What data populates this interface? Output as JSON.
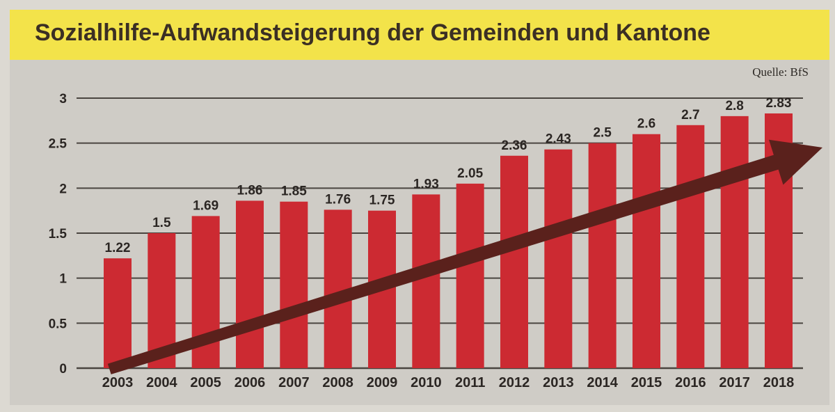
{
  "title": "Sozialhilfe-Aufwandsteigerung der Gemeinden und Kantone",
  "source": "Quelle: BfS",
  "colors": {
    "bar": "#cc2a32",
    "arrow": "#5a211c",
    "grid": "#4a4540",
    "text": "#2b2623",
    "title_band": "#f3e34a"
  },
  "chart_data": {
    "type": "bar",
    "categories": [
      "2003",
      "2004",
      "2005",
      "2006",
      "2007",
      "2008",
      "2009",
      "2010",
      "2011",
      "2012",
      "2013",
      "2014",
      "2015",
      "2016",
      "2017",
      "2018"
    ],
    "values": [
      1.22,
      1.5,
      1.69,
      1.86,
      1.85,
      1.76,
      1.75,
      1.93,
      2.05,
      2.36,
      2.43,
      2.5,
      2.6,
      2.7,
      2.8,
      2.83
    ],
    "value_labels": [
      "1.22",
      "1.5",
      "1.69",
      "1.86",
      "1.85",
      "1.76",
      "1.75",
      "1.93",
      "2.05",
      "2.36",
      "2.43",
      "2.5",
      "2.6",
      "2.7",
      "2.8",
      "2.83"
    ],
    "y_ticks": [
      "0",
      "0.5",
      "1",
      "1.5",
      "2",
      "2.5",
      "3"
    ],
    "ylim": [
      0,
      3
    ],
    "grid": true,
    "trend_arrow": true,
    "title": "Sozialhilfe-Aufwandsteigerung der Gemeinden und Kantone",
    "xlabel": "",
    "ylabel": ""
  }
}
